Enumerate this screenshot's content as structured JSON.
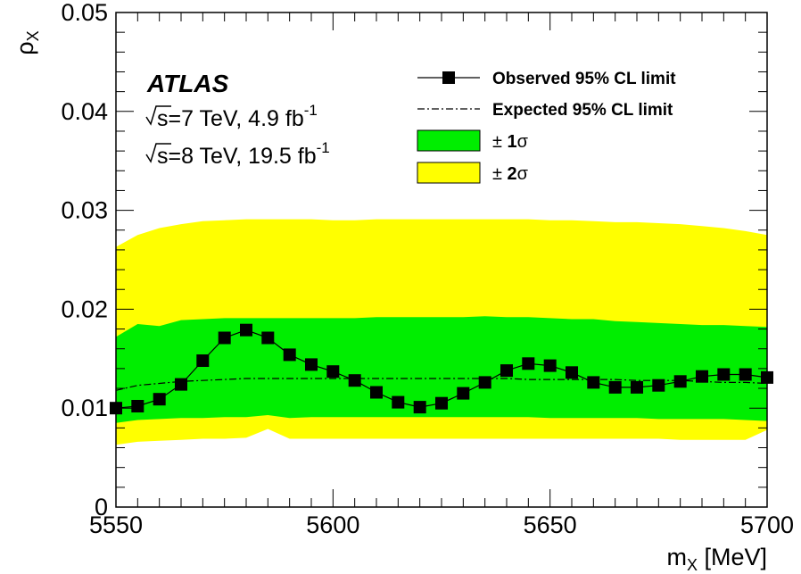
{
  "chart_data": {
    "type": "line",
    "x_label_main": "m",
    "x_label_sub": "X",
    "x_label_unit": " [MeV]",
    "y_label_main": "ρ",
    "y_label_sub": "X",
    "xlim": [
      5550,
      5700
    ],
    "ylim": [
      0,
      0.05
    ],
    "x_ticks": [
      5550,
      5600,
      5650,
      5700
    ],
    "y_ticks": [
      0,
      0.01,
      0.02,
      0.03,
      0.04,
      0.05
    ],
    "y_tick_labels": [
      "0",
      "0.01",
      "0.02",
      "0.03",
      "0.04",
      "0.05"
    ],
    "annotations": {
      "experiment": "ATLAS",
      "run1_prefix": "s=7 TeV, 4.9 fb",
      "run1_exp": "-1",
      "run2_prefix": "s=8 TeV, 19.5 fb",
      "run2_exp": "-1"
    },
    "legend": {
      "placement": "top-right",
      "observed": "Observed 95% CL limit",
      "expected": "Expected 95% CL limit",
      "one_sigma_pm": "± ",
      "one_sigma_n": "1",
      "one_sigma_s": "σ",
      "two_sigma_pm": "± ",
      "two_sigma_n": "2",
      "two_sigma_s": "σ"
    },
    "colors": {
      "one_sigma": "#00ee00",
      "two_sigma": "#ffff00",
      "observed": "#000000",
      "expected": "#000000"
    },
    "x": [
      5550,
      5555,
      5560,
      5565,
      5570,
      5575,
      5580,
      5585,
      5590,
      5595,
      5600,
      5605,
      5610,
      5615,
      5620,
      5625,
      5630,
      5635,
      5640,
      5645,
      5650,
      5655,
      5660,
      5665,
      5670,
      5675,
      5680,
      5685,
      5690,
      5695,
      5700
    ],
    "series": [
      {
        "name": "Observed 95% CL limit",
        "values": [
          0.01,
          0.0102,
          0.0109,
          0.0124,
          0.0148,
          0.0171,
          0.0179,
          0.0171,
          0.0154,
          0.0144,
          0.0137,
          0.0128,
          0.0116,
          0.0106,
          0.0101,
          0.0105,
          0.0115,
          0.0126,
          0.0138,
          0.0145,
          0.0143,
          0.0136,
          0.0126,
          0.0121,
          0.0121,
          0.0123,
          0.0127,
          0.0132,
          0.0134,
          0.0134,
          0.0131
        ]
      },
      {
        "name": "Expected 95% CL limit",
        "values": [
          0.0118,
          0.0123,
          0.0125,
          0.0127,
          0.0128,
          0.0129,
          0.013,
          0.013,
          0.013,
          0.013,
          0.013,
          0.013,
          0.013,
          0.013,
          0.013,
          0.013,
          0.013,
          0.013,
          0.013,
          0.0129,
          0.0129,
          0.0129,
          0.0129,
          0.0129,
          0.0128,
          0.0128,
          0.0128,
          0.0127,
          0.0126,
          0.0126,
          0.0125
        ]
      }
    ],
    "band_1sigma": {
      "lower": [
        0.0085,
        0.0088,
        0.0089,
        0.009,
        0.009,
        0.0091,
        0.0091,
        0.0093,
        0.009,
        0.0091,
        0.0091,
        0.0091,
        0.0091,
        0.0091,
        0.0091,
        0.0091,
        0.0091,
        0.0091,
        0.0091,
        0.0091,
        0.009,
        0.009,
        0.009,
        0.009,
        0.009,
        0.0089,
        0.0089,
        0.0089,
        0.0089,
        0.0088,
        0.0087
      ],
      "upper": [
        0.0172,
        0.0185,
        0.0183,
        0.0189,
        0.019,
        0.0191,
        0.0191,
        0.0191,
        0.0191,
        0.0191,
        0.0191,
        0.0191,
        0.0192,
        0.0192,
        0.0192,
        0.0192,
        0.0192,
        0.0193,
        0.0192,
        0.0192,
        0.0191,
        0.019,
        0.019,
        0.0188,
        0.0187,
        0.0186,
        0.0185,
        0.0184,
        0.0184,
        0.0183,
        0.0182
      ]
    },
    "band_2sigma": {
      "lower": [
        0.0063,
        0.0066,
        0.0067,
        0.0068,
        0.0069,
        0.0069,
        0.007,
        0.0079,
        0.0069,
        0.0069,
        0.0069,
        0.0069,
        0.0069,
        0.0069,
        0.0069,
        0.0069,
        0.0069,
        0.0069,
        0.0069,
        0.0069,
        0.0069,
        0.0069,
        0.0069,
        0.0069,
        0.0069,
        0.0069,
        0.0068,
        0.0068,
        0.0068,
        0.0068,
        0.0078
      ],
      "upper": [
        0.0263,
        0.0275,
        0.0282,
        0.0286,
        0.0289,
        0.029,
        0.0291,
        0.0291,
        0.0291,
        0.0291,
        0.029,
        0.029,
        0.0291,
        0.0291,
        0.0291,
        0.0291,
        0.0291,
        0.0291,
        0.0291,
        0.0291,
        0.029,
        0.029,
        0.0289,
        0.0288,
        0.0288,
        0.0287,
        0.0286,
        0.0284,
        0.0282,
        0.0279,
        0.0275
      ]
    }
  }
}
